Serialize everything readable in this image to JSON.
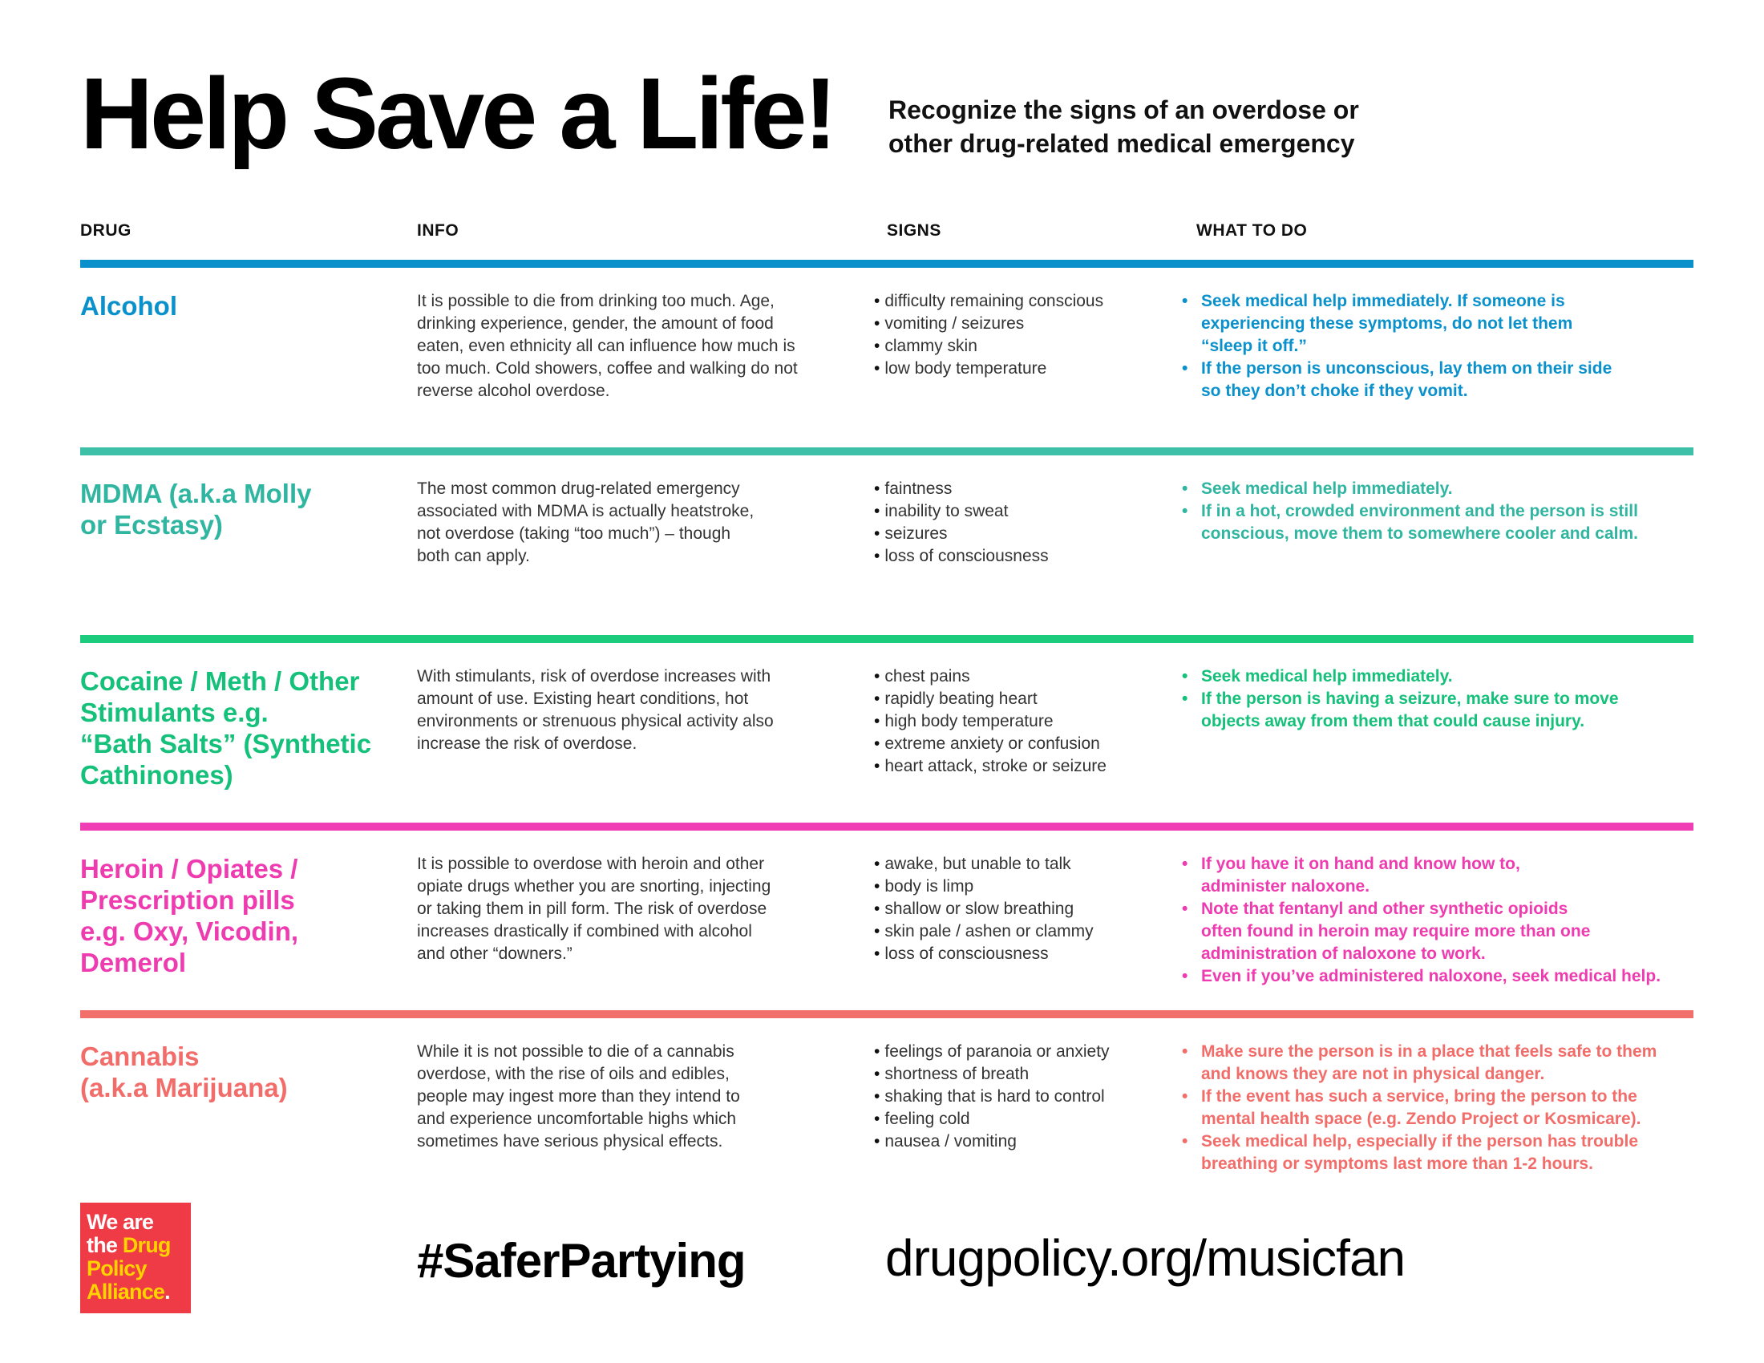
{
  "title": "Help Save a Life!",
  "subtitle": [
    "Recognize the signs of an overdose or",
    "other drug-related medical emergency"
  ],
  "columns": {
    "drug": "DRUG",
    "info": "INFO",
    "signs": "SIGNS",
    "todo": "WHAT TO DO"
  },
  "rows": [
    {
      "color": "#0a91cc",
      "text_color": "#0a91cc",
      "drug": [
        "Alcohol"
      ],
      "info": [
        "It is possible to die from drinking too much. Age,",
        "drinking experience, gender, the amount of food",
        "eaten, even ethnicity all can influence how much is",
        "too much. Cold showers, coffee and walking do not",
        "reverse alcohol overdose."
      ],
      "signs": [
        "difficulty remaining conscious",
        "vomiting / seizures",
        "clammy skin",
        "low body temperature"
      ],
      "todo": [
        [
          "Seek medical help immediately. If someone is",
          "experiencing these symptoms, do not let them",
          "“sleep it off.”"
        ],
        [
          "If the person is unconscious, lay them on their side",
          "so they don’t choke if they vomit."
        ]
      ]
    },
    {
      "color": "#3dbfa8",
      "text_color": "#2fb5a0",
      "drug": [
        "MDMA (a.k.a Molly",
        "or Ecstasy)"
      ],
      "info": [
        "The most common drug-related emergency",
        "associated with MDMA is actually heatstroke,",
        "not overdose (taking “too much”) – though",
        "both can apply."
      ],
      "signs": [
        "faintness",
        "inability to sweat",
        "seizures",
        "loss of consciousness"
      ],
      "todo": [
        [
          "Seek medical help immediately."
        ],
        [
          "If in a hot, crowded environment and the person is still",
          "conscious, move them to somewhere cooler and calm."
        ]
      ]
    },
    {
      "color": "#1ccb7c",
      "text_color": "#15c07a",
      "drug": [
        "Cocaine / Meth / Other",
        "Stimulants e.g.",
        "“Bath Salts” (Synthetic",
        "Cathinones)"
      ],
      "info": [
        "With stimulants, risk of overdose increases with",
        "amount of use. Existing heart conditions, hot",
        "environments or strenuous physical activity also",
        "increase the risk of overdose."
      ],
      "signs": [
        "chest pains",
        "rapidly beating heart",
        "high body temperature",
        "extreme anxiety or confusion",
        "heart attack, stroke or seizure"
      ],
      "todo": [
        [
          "Seek medical help immediately."
        ],
        [
          "If the person is having a seizure, make sure to move",
          "objects away from them that could cause injury."
        ]
      ]
    },
    {
      "color": "#f03fb4",
      "text_color": "#ef3bb0",
      "drug": [
        "Heroin / Opiates /",
        "Prescription pills",
        "e.g. Oxy, Vicodin,",
        "Demerol"
      ],
      "info": [
        "It is possible to overdose with heroin and other",
        "opiate drugs whether you are snorting, injecting",
        "or taking them in pill form. The risk of overdose",
        "increases drastically if combined with alcohol",
        "and other “downers.”"
      ],
      "signs": [
        "awake, but unable to talk",
        "body is limp",
        "shallow or slow breathing",
        "skin pale / ashen or clammy",
        "loss of consciousness"
      ],
      "todo": [
        [
          "If you have it on hand and know how to,",
          "administer naloxone."
        ],
        [
          "Note that fentanyl and other synthetic opioids",
          "often found in heroin may require more than one",
          "administration of naloxone to work."
        ],
        [
          "Even if you’ve administered naloxone, seek medical help."
        ]
      ]
    },
    {
      "color": "#f2706c",
      "text_color": "#f26d6a",
      "drug": [
        "Cannabis",
        "(a.k.a Marijuana)"
      ],
      "info": [
        "While it is not possible to die of a cannabis",
        "overdose, with the rise of oils and edibles,",
        "people may ingest more than they intend to",
        "and experience uncomfortable highs which",
        "sometimes have serious physical effects."
      ],
      "signs": [
        "feelings of paranoia or anxiety",
        "shortness of breath",
        "shaking that is hard to control",
        "feeling cold",
        "nausea / vomiting"
      ],
      "todo": [
        [
          "Make sure the person is in a place that feels safe to them",
          "and knows they are not in physical danger."
        ],
        [
          "If the event has such a service, bring the person to the",
          "mental health space (e.g. Zendo Project or Kosmicare)."
        ],
        [
          "Seek medical help, especially if the person has trouble",
          "breathing or symptoms last more than 1-2 hours."
        ]
      ]
    }
  ],
  "logo": {
    "lines": [
      [
        {
          "text": "We are",
          "tone": "w"
        }
      ],
      [
        {
          "text": "the ",
          "tone": "w"
        },
        {
          "text": "Drug",
          "tone": "y"
        }
      ],
      [
        {
          "text": "Policy",
          "tone": "y"
        }
      ],
      [
        {
          "text": "Alliance",
          "tone": "y"
        },
        {
          "text": ".",
          "tone": "w"
        }
      ]
    ],
    "bg_color": "#ef3b45",
    "accent_color": "#ffd200"
  },
  "hashtag": "#SaferPartying",
  "url": "drugpolicy.org/musicfan"
}
